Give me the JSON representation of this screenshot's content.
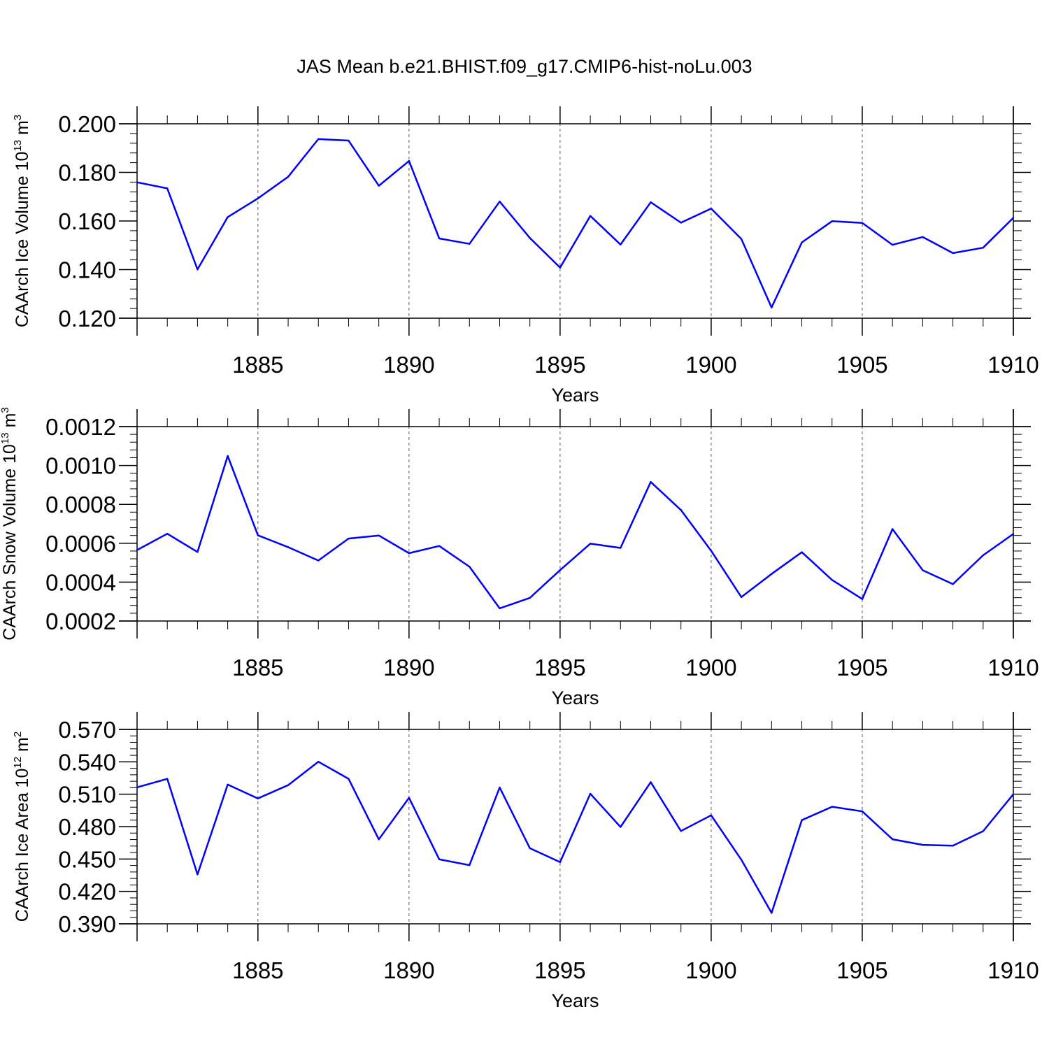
{
  "title": "JAS Mean b.e21.BHIST.f09_g17.CMIP6-hist-noLu.003",
  "colors": {
    "line": "#0000ff",
    "axis": "#000000",
    "grid": "#555555"
  },
  "chart_data": [
    {
      "type": "line",
      "ylabel": {
        "text": "CAArch Ice Volume 10",
        "exp": "13",
        "unit": " m",
        "unit_exp": "3"
      },
      "xlabel": "Years",
      "xlim": [
        1881,
        1910
      ],
      "ylim": [
        0.12,
        0.2
      ],
      "yticks": [
        0.12,
        0.14,
        0.16,
        0.18,
        0.2
      ],
      "ytick_labels": [
        "0.120",
        "0.140",
        "0.160",
        "0.180",
        "0.200"
      ],
      "xticks": [
        1885,
        1890,
        1895,
        1900,
        1905,
        1910
      ],
      "xtick_labels": [
        "1885",
        "1890",
        "1895",
        "1900",
        "1905",
        "1910"
      ],
      "series": [
        {
          "name": "ice_volume",
          "x": [
            1881,
            1882,
            1883,
            1884,
            1885,
            1886,
            1887,
            1888,
            1889,
            1890,
            1891,
            1892,
            1893,
            1894,
            1895,
            1896,
            1897,
            1898,
            1899,
            1900,
            1901,
            1902,
            1903,
            1904,
            1905,
            1906,
            1907,
            1908,
            1909,
            1910
          ],
          "values": [
            0.1759,
            0.1734,
            0.1401,
            0.1616,
            0.1693,
            0.1782,
            0.1937,
            0.1931,
            0.1745,
            0.1847,
            0.1528,
            0.1506,
            0.168,
            0.153,
            0.1408,
            0.1621,
            0.1503,
            0.1677,
            0.1593,
            0.1651,
            0.1526,
            0.1244,
            0.1512,
            0.1599,
            0.1592,
            0.1502,
            0.1534,
            0.1468,
            0.149,
            0.1613
          ]
        }
      ]
    },
    {
      "type": "line",
      "ylabel": {
        "text": "CAArch Snow Volume 10",
        "exp": "13",
        "unit": " m",
        "unit_exp": "3"
      },
      "xlabel": "Years",
      "xlim": [
        1881,
        1910
      ],
      "ylim": [
        0.0002,
        0.0012
      ],
      "yticks": [
        0.0002,
        0.0004,
        0.0006,
        0.0008,
        0.001,
        0.0012
      ],
      "ytick_labels": [
        "0.0002",
        "0.0004",
        "0.0006",
        "0.0008",
        "0.0010",
        "0.0012"
      ],
      "xticks": [
        1885,
        1890,
        1895,
        1900,
        1905,
        1910
      ],
      "xtick_labels": [
        "1885",
        "1890",
        "1895",
        "1900",
        "1905",
        "1910"
      ],
      "series": [
        {
          "name": "snow_volume",
          "x": [
            1881,
            1882,
            1883,
            1884,
            1885,
            1886,
            1887,
            1888,
            1889,
            1890,
            1891,
            1892,
            1893,
            1894,
            1895,
            1896,
            1897,
            1898,
            1899,
            1900,
            1901,
            1902,
            1903,
            1904,
            1905,
            1906,
            1907,
            1908,
            1909,
            1910
          ],
          "values": [
            0.000565,
            0.000649,
            0.000555,
            0.001049,
            0.000641,
            0.00058,
            0.000511,
            0.000624,
            0.00064,
            0.000549,
            0.000586,
            0.000479,
            0.000265,
            0.000319,
            0.000462,
            0.000598,
            0.000576,
            0.000915,
            0.000771,
            0.000561,
            0.000323,
            0.000442,
            0.000554,
            0.000411,
            0.000313,
            0.000673,
            0.000461,
            0.00039,
            0.000538,
            0.000648
          ]
        }
      ]
    },
    {
      "type": "line",
      "ylabel": {
        "text": "CAArch Ice Area 10",
        "exp": "12",
        "unit": " m",
        "unit_exp": "2"
      },
      "xlabel": "Years",
      "xlim": [
        1881,
        1910
      ],
      "ylim": [
        0.39,
        0.57
      ],
      "yticks": [
        0.39,
        0.42,
        0.45,
        0.48,
        0.51,
        0.54,
        0.57
      ],
      "ytick_labels": [
        "0.390",
        "0.420",
        "0.450",
        "0.480",
        "0.510",
        "0.540",
        "0.570"
      ],
      "xticks": [
        1885,
        1890,
        1895,
        1900,
        1905,
        1910
      ],
      "xtick_labels": [
        "1885",
        "1890",
        "1895",
        "1900",
        "1905",
        "1910"
      ],
      "series": [
        {
          "name": "ice_area",
          "x": [
            1881,
            1882,
            1883,
            1884,
            1885,
            1886,
            1887,
            1888,
            1889,
            1890,
            1891,
            1892,
            1893,
            1894,
            1895,
            1896,
            1897,
            1898,
            1899,
            1900,
            1901,
            1902,
            1903,
            1904,
            1905,
            1906,
            1907,
            1908,
            1909,
            1910
          ],
          "values": [
            0.5164,
            0.5242,
            0.4357,
            0.5189,
            0.5061,
            0.5184,
            0.5401,
            0.5243,
            0.4682,
            0.5067,
            0.4497,
            0.4443,
            0.5162,
            0.46,
            0.4472,
            0.5104,
            0.4797,
            0.5212,
            0.4759,
            0.4905,
            0.4493,
            0.4001,
            0.486,
            0.4984,
            0.4941,
            0.4683,
            0.4631,
            0.4623,
            0.4758,
            0.51
          ]
        }
      ]
    }
  ]
}
